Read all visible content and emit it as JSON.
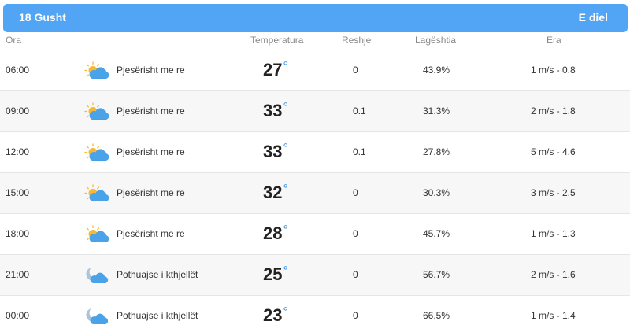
{
  "header": {
    "date": "18 Gusht",
    "day": "E diel"
  },
  "columns": {
    "time": "Ora",
    "temperature": "Temperatura",
    "precipitation": "Reshje",
    "humidity": "Lagështia",
    "wind": "Era"
  },
  "degree_symbol": "°",
  "rows": [
    {
      "time": "06:00",
      "icon": "partly-cloudy-sun-icon",
      "condition": "Pjesërisht me re",
      "temp": "27",
      "precip": "0",
      "humidity": "43.9%",
      "wind": "1 m/s - 0.8"
    },
    {
      "time": "09:00",
      "icon": "partly-cloudy-sun-icon",
      "condition": "Pjesërisht me re",
      "temp": "33",
      "precip": "0.1",
      "humidity": "31.3%",
      "wind": "2 m/s - 1.8"
    },
    {
      "time": "12:00",
      "icon": "partly-cloudy-sun-icon",
      "condition": "Pjesërisht me re",
      "temp": "33",
      "precip": "0.1",
      "humidity": "27.8%",
      "wind": "5 m/s - 4.6"
    },
    {
      "time": "15:00",
      "icon": "partly-cloudy-sun-icon",
      "condition": "Pjesërisht me re",
      "temp": "32",
      "precip": "0",
      "humidity": "30.3%",
      "wind": "3 m/s - 2.5"
    },
    {
      "time": "18:00",
      "icon": "partly-cloudy-sun-icon",
      "condition": "Pjesërisht me re",
      "temp": "28",
      "precip": "0",
      "humidity": "45.7%",
      "wind": "1 m/s - 1.3"
    },
    {
      "time": "21:00",
      "icon": "moon-cloud-icon",
      "condition": "Pothuajse i kthjellët",
      "temp": "25",
      "precip": "0",
      "humidity": "56.7%",
      "wind": "2 m/s - 1.6"
    },
    {
      "time": "00:00",
      "icon": "moon-cloud-icon",
      "condition": "Pothuajse i kthjellët",
      "temp": "23",
      "precip": "0",
      "humidity": "66.5%",
      "wind": "1 m/s - 1.4"
    }
  ],
  "colors": {
    "header_bg": "#52a5f4",
    "degree": "#2f8ae0",
    "sun": "#f5b93a",
    "cloud": "#4aa3e8"
  }
}
